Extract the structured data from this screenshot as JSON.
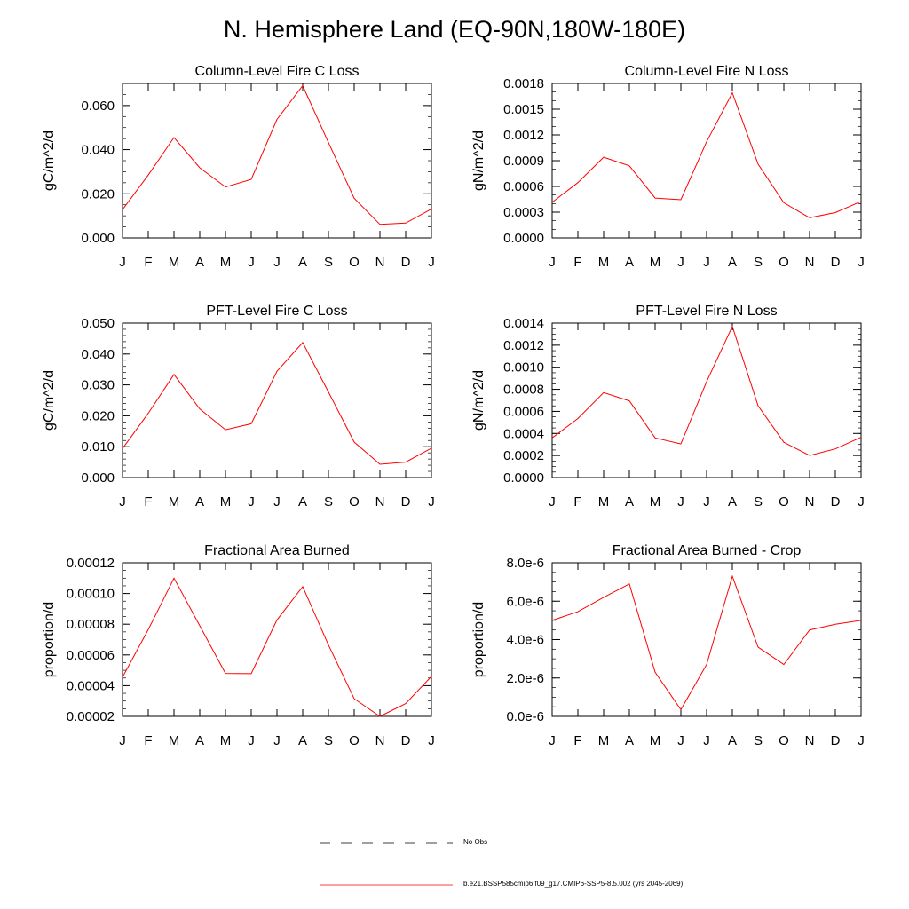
{
  "page": {
    "title": "N. Hemisphere Land (EQ-90N,180W-180E)"
  },
  "legend": [
    {
      "label": "No Obs",
      "style": "dashed",
      "color": "#000000"
    },
    {
      "label": "b.e21.BSSP585cmip6.f09_g17.CMIP6-SSP5-8.5.002 (yrs 2045-2069)",
      "style": "solid",
      "color": "#ff0000"
    }
  ],
  "line_color": "#ff0000",
  "chart_data": [
    {
      "type": "line",
      "title": "Column-Level Fire C Loss",
      "ylabel": "gC/m^2/d",
      "categories": [
        "J",
        "F",
        "M",
        "A",
        "M",
        "J",
        "J",
        "A",
        "S",
        "O",
        "N",
        "D",
        "J"
      ],
      "ylim": [
        0,
        0.07
      ],
      "yticks": [
        0.0,
        0.02,
        0.04,
        0.06
      ],
      "ytick_labels": [
        "0.000",
        "0.020",
        "0.040",
        "0.060"
      ],
      "yminor": 0.005,
      "values": [
        0.0128,
        0.0285,
        0.0455,
        0.0318,
        0.0231,
        0.0265,
        0.0537,
        0.069,
        0.0432,
        0.018,
        0.0061,
        0.0067,
        0.0131
      ]
    },
    {
      "type": "line",
      "title": "Column-Level Fire N Loss",
      "ylabel": "gN/m^2/d",
      "categories": [
        "J",
        "F",
        "M",
        "A",
        "M",
        "J",
        "J",
        "A",
        "S",
        "O",
        "N",
        "D",
        "J"
      ],
      "ylim": [
        0,
        0.0018
      ],
      "yticks": [
        0.0,
        0.0003,
        0.0006,
        0.0009,
        0.0012,
        0.0015,
        0.0018
      ],
      "ytick_labels": [
        "0.0000",
        "0.0003",
        "0.0006",
        "0.0009",
        "0.0012",
        "0.0015",
        "0.0018"
      ],
      "yminor": 0.0001,
      "values": [
        0.000415,
        0.000645,
        0.00094,
        0.00084,
        0.000465,
        0.000445,
        0.00112,
        0.00169,
        0.00086,
        0.00041,
        0.000235,
        0.000295,
        0.000425
      ]
    },
    {
      "type": "line",
      "title": "PFT-Level Fire C Loss",
      "ylabel": "gC/m^2/d",
      "categories": [
        "J",
        "F",
        "M",
        "A",
        "M",
        "J",
        "J",
        "A",
        "S",
        "O",
        "N",
        "D",
        "J"
      ],
      "ylim": [
        0,
        0.05
      ],
      "yticks": [
        0.0,
        0.01,
        0.02,
        0.03,
        0.04,
        0.05
      ],
      "ytick_labels": [
        "0.000",
        "0.010",
        "0.020",
        "0.030",
        "0.040",
        "0.050"
      ],
      "yminor": 0.002,
      "values": [
        0.0094,
        0.0208,
        0.0334,
        0.0222,
        0.0155,
        0.0174,
        0.0344,
        0.0437,
        0.0277,
        0.0115,
        0.0043,
        0.005,
        0.0095
      ]
    },
    {
      "type": "line",
      "title": "PFT-Level Fire N Loss",
      "ylabel": "gN/m^2/d",
      "categories": [
        "J",
        "F",
        "M",
        "A",
        "M",
        "J",
        "J",
        "A",
        "S",
        "O",
        "N",
        "D",
        "J"
      ],
      "ylim": [
        0,
        0.0014
      ],
      "yticks": [
        0.0,
        0.0002,
        0.0004,
        0.0006,
        0.0008,
        0.001,
        0.0012,
        0.0014
      ],
      "ytick_labels": [
        "0.0000",
        "0.0002",
        "0.0004",
        "0.0006",
        "0.0008",
        "0.0010",
        "0.0012",
        "0.0014"
      ],
      "yminor": 5e-05,
      "values": [
        0.00036,
        0.000535,
        0.00077,
        0.000695,
        0.00036,
        0.000305,
        0.00087,
        0.00137,
        0.00065,
        0.00032,
        0.0002,
        0.00026,
        0.000365
      ]
    },
    {
      "type": "line",
      "title": "Fractional Area Burned",
      "ylabel": "proportion/d",
      "categories": [
        "J",
        "F",
        "M",
        "A",
        "M",
        "J",
        "J",
        "A",
        "S",
        "O",
        "N",
        "D",
        "J"
      ],
      "ylim": [
        2e-05,
        0.00012
      ],
      "yticks": [
        2e-05,
        4e-05,
        6e-05,
        8e-05,
        0.0001,
        0.00012
      ],
      "ytick_labels": [
        "0.00002",
        "0.00004",
        "0.00006",
        "0.00008",
        "0.00010",
        "0.00012"
      ],
      "yminor": 5e-06,
      "values": [
        4.55e-05,
        7.65e-05,
        0.00011,
        7.9e-05,
        4.8e-05,
        4.78e-05,
        8.28e-05,
        0.0001045,
        6.65e-05,
        3.15e-05,
        2e-05,
        2.83e-05,
        4.6e-05
      ]
    },
    {
      "type": "line",
      "title": "Fractional Area Burned - Crop",
      "ylabel": "proportion/d",
      "categories": [
        "J",
        "F",
        "M",
        "A",
        "M",
        "J",
        "J",
        "A",
        "S",
        "O",
        "N",
        "D",
        "J"
      ],
      "ylim": [
        0,
        8e-06
      ],
      "yticks": [
        0,
        2e-06,
        4e-06,
        6e-06,
        8e-06
      ],
      "ytick_labels": [
        "0.0e-6",
        "2.0e-6",
        "4.0e-6",
        "6.0e-6",
        "8.0e-6"
      ],
      "yminor": 5e-07,
      "values": [
        5e-06,
        5.45e-06,
        6.2e-06,
        6.9e-06,
        2.3e-06,
        3.5e-07,
        2.7e-06,
        7.3e-06,
        3.6e-06,
        2.7e-06,
        4.5e-06,
        4.8e-06,
        5e-06
      ]
    }
  ]
}
